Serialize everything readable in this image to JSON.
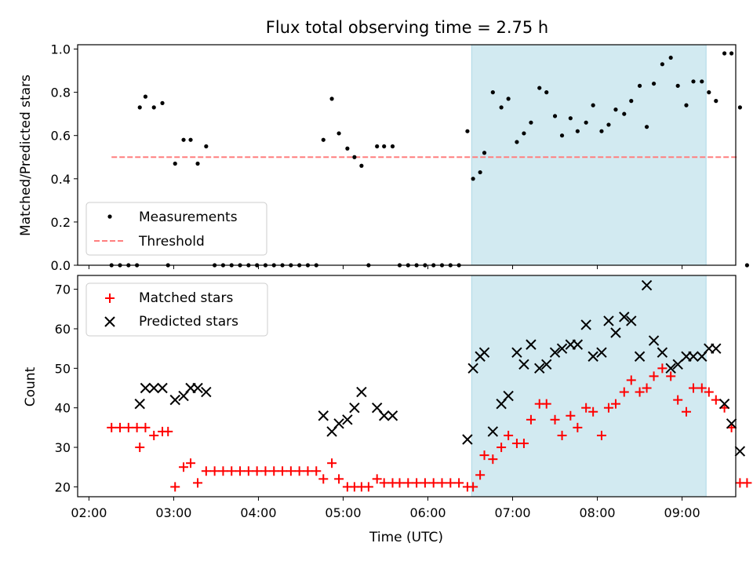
{
  "figure": {
    "title": "Flux total observing time = 2.75 h",
    "xlabel": "Time (UTC)",
    "x_ticks": [
      "02:00",
      "03:00",
      "04:00",
      "05:00",
      "06:00",
      "07:00",
      "08:00",
      "09:00"
    ],
    "shaded_interval": {
      "start": "06:31",
      "end": "09:17",
      "color": "#add8e6"
    }
  },
  "chart_data": [
    {
      "type": "scatter",
      "name": "top-panel",
      "ylabel": "Matched/Predicted stars",
      "xlim": [
        "01:52",
        "09:38"
      ],
      "ylim": [
        0,
        1.02
      ],
      "y_ticks": [
        "0.0",
        "0.2",
        "0.4",
        "0.6",
        "0.8",
        "1.0"
      ],
      "legend": {
        "location": "lower-left",
        "entries": [
          "Measurements",
          "Threshold"
        ]
      },
      "series": [
        {
          "name": "Measurements",
          "marker": "dot",
          "color": "#000000",
          "points": [
            [
              "02:16",
              0
            ],
            [
              "02:22",
              0
            ],
            [
              "02:28",
              0
            ],
            [
              "02:34",
              0
            ],
            [
              "02:36",
              0.73
            ],
            [
              "02:40",
              0.78
            ],
            [
              "02:46",
              0.73
            ],
            [
              "02:52",
              0.75
            ],
            [
              "02:56",
              0
            ],
            [
              "03:01",
              0.47
            ],
            [
              "03:07",
              0.58
            ],
            [
              "03:12",
              0.58
            ],
            [
              "03:17",
              0.47
            ],
            [
              "03:23",
              0.55
            ],
            [
              "03:29",
              0
            ],
            [
              "03:35",
              0
            ],
            [
              "03:41",
              0
            ],
            [
              "03:47",
              0
            ],
            [
              "03:53",
              0
            ],
            [
              "03:59",
              0
            ],
            [
              "04:05",
              0
            ],
            [
              "04:11",
              0
            ],
            [
              "04:17",
              0
            ],
            [
              "04:23",
              0
            ],
            [
              "04:29",
              0
            ],
            [
              "04:35",
              0
            ],
            [
              "04:41",
              0
            ],
            [
              "04:46",
              0.58
            ],
            [
              "04:52",
              0.77
            ],
            [
              "04:57",
              0.61
            ],
            [
              "05:03",
              0.54
            ],
            [
              "05:08",
              0.5
            ],
            [
              "05:13",
              0.46
            ],
            [
              "05:18",
              0
            ],
            [
              "05:24",
              0.55
            ],
            [
              "05:29",
              0.55
            ],
            [
              "05:35",
              0.55
            ],
            [
              "05:40",
              0
            ],
            [
              "05:46",
              0
            ],
            [
              "05:52",
              0
            ],
            [
              "05:58",
              0
            ],
            [
              "06:04",
              0
            ],
            [
              "06:10",
              0
            ],
            [
              "06:16",
              0
            ],
            [
              "06:22",
              0
            ],
            [
              "06:28",
              0.62
            ],
            [
              "06:32",
              0.4
            ],
            [
              "06:37",
              0.43
            ],
            [
              "06:40",
              0.52
            ],
            [
              "06:46",
              0.8
            ],
            [
              "06:52",
              0.73
            ],
            [
              "06:57",
              0.77
            ],
            [
              "07:03",
              0.57
            ],
            [
              "07:08",
              0.61
            ],
            [
              "07:13",
              0.66
            ],
            [
              "07:19",
              0.82
            ],
            [
              "07:24",
              0.8
            ],
            [
              "07:30",
              0.69
            ],
            [
              "07:35",
              0.6
            ],
            [
              "07:41",
              0.68
            ],
            [
              "07:46",
              0.62
            ],
            [
              "07:52",
              0.66
            ],
            [
              "07:57",
              0.74
            ],
            [
              "08:03",
              0.62
            ],
            [
              "08:08",
              0.65
            ],
            [
              "08:13",
              0.72
            ],
            [
              "08:19",
              0.7
            ],
            [
              "08:24",
              0.76
            ],
            [
              "08:30",
              0.83
            ],
            [
              "08:35",
              0.64
            ],
            [
              "08:40",
              0.84
            ],
            [
              "08:46",
              0.93
            ],
            [
              "08:52",
              0.96
            ],
            [
              "08:57",
              0.83
            ],
            [
              "09:03",
              0.74
            ],
            [
              "09:08",
              0.85
            ],
            [
              "09:14",
              0.85
            ],
            [
              "09:19",
              0.8
            ],
            [
              "09:24",
              0.76
            ],
            [
              "09:30",
              0.98
            ],
            [
              "09:35",
              0.98
            ],
            [
              "09:41",
              0.73
            ],
            [
              "09:46",
              0
            ]
          ]
        },
        {
          "name": "Threshold",
          "style": "dashed",
          "color": "#ff7f7f",
          "y": 0.5,
          "x_range": [
            "02:16",
            "09:40"
          ]
        }
      ]
    },
    {
      "type": "scatter",
      "name": "bottom-panel",
      "ylabel": "Count",
      "xlim": [
        "01:52",
        "09:38"
      ],
      "ylim": [
        17.5,
        73.5
      ],
      "y_ticks": [
        "20",
        "30",
        "40",
        "50",
        "60",
        "70"
      ],
      "legend": {
        "location": "upper-left",
        "entries": [
          "Matched stars",
          "Predicted stars"
        ]
      },
      "series": [
        {
          "name": "Matched stars",
          "marker": "plus",
          "color": "#ff0000",
          "points": [
            [
              "02:16",
              35
            ],
            [
              "02:22",
              35
            ],
            [
              "02:28",
              35
            ],
            [
              "02:34",
              35
            ],
            [
              "02:36",
              30
            ],
            [
              "02:40",
              35
            ],
            [
              "02:46",
              33
            ],
            [
              "02:52",
              34
            ],
            [
              "02:56",
              34
            ],
            [
              "03:01",
              20
            ],
            [
              "03:07",
              25
            ],
            [
              "03:12",
              26
            ],
            [
              "03:17",
              21
            ],
            [
              "03:23",
              24
            ],
            [
              "03:29",
              24
            ],
            [
              "03:35",
              24
            ],
            [
              "03:41",
              24
            ],
            [
              "03:47",
              24
            ],
            [
              "03:53",
              24
            ],
            [
              "03:59",
              24
            ],
            [
              "04:05",
              24
            ],
            [
              "04:11",
              24
            ],
            [
              "04:17",
              24
            ],
            [
              "04:23",
              24
            ],
            [
              "04:29",
              24
            ],
            [
              "04:35",
              24
            ],
            [
              "04:41",
              24
            ],
            [
              "04:46",
              22
            ],
            [
              "04:52",
              26
            ],
            [
              "04:57",
              22
            ],
            [
              "05:03",
              20
            ],
            [
              "05:08",
              20
            ],
            [
              "05:13",
              20
            ],
            [
              "05:18",
              20
            ],
            [
              "05:24",
              22
            ],
            [
              "05:29",
              21
            ],
            [
              "05:35",
              21
            ],
            [
              "05:40",
              21
            ],
            [
              "05:46",
              21
            ],
            [
              "05:52",
              21
            ],
            [
              "05:58",
              21
            ],
            [
              "06:04",
              21
            ],
            [
              "06:10",
              21
            ],
            [
              "06:16",
              21
            ],
            [
              "06:22",
              21
            ],
            [
              "06:28",
              20
            ],
            [
              "06:32",
              20
            ],
            [
              "06:37",
              23
            ],
            [
              "06:40",
              28
            ],
            [
              "06:46",
              27
            ],
            [
              "06:52",
              30
            ],
            [
              "06:57",
              33
            ],
            [
              "07:03",
              31
            ],
            [
              "07:08",
              31
            ],
            [
              "07:13",
              37
            ],
            [
              "07:19",
              41
            ],
            [
              "07:24",
              41
            ],
            [
              "07:30",
              37
            ],
            [
              "07:35",
              33
            ],
            [
              "07:41",
              38
            ],
            [
              "07:46",
              35
            ],
            [
              "07:52",
              40
            ],
            [
              "07:57",
              39
            ],
            [
              "08:03",
              33
            ],
            [
              "08:08",
              40
            ],
            [
              "08:13",
              41
            ],
            [
              "08:19",
              44
            ],
            [
              "08:24",
              47
            ],
            [
              "08:30",
              44
            ],
            [
              "08:35",
              45
            ],
            [
              "08:40",
              48
            ],
            [
              "08:46",
              50
            ],
            [
              "08:52",
              48
            ],
            [
              "08:57",
              42
            ],
            [
              "09:03",
              39
            ],
            [
              "09:08",
              45
            ],
            [
              "09:14",
              45
            ],
            [
              "09:19",
              44
            ],
            [
              "09:24",
              42
            ],
            [
              "09:30",
              40
            ],
            [
              "09:35",
              35
            ],
            [
              "09:41",
              21
            ],
            [
              "09:46",
              21
            ]
          ]
        },
        {
          "name": "Predicted stars",
          "marker": "x",
          "color": "#000000",
          "points": [
            [
              "02:36",
              41
            ],
            [
              "02:40",
              45
            ],
            [
              "02:46",
              45
            ],
            [
              "02:52",
              45
            ],
            [
              "03:01",
              42
            ],
            [
              "03:07",
              43
            ],
            [
              "03:12",
              45
            ],
            [
              "03:17",
              45
            ],
            [
              "03:23",
              44
            ],
            [
              "04:46",
              38
            ],
            [
              "04:52",
              34
            ],
            [
              "04:57",
              36
            ],
            [
              "05:03",
              37
            ],
            [
              "05:08",
              40
            ],
            [
              "05:13",
              44
            ],
            [
              "05:24",
              40
            ],
            [
              "05:29",
              38
            ],
            [
              "05:35",
              38
            ],
            [
              "06:28",
              32
            ],
            [
              "06:32",
              50
            ],
            [
              "06:37",
              53
            ],
            [
              "06:40",
              54
            ],
            [
              "06:46",
              34
            ],
            [
              "06:52",
              41
            ],
            [
              "06:57",
              43
            ],
            [
              "07:03",
              54
            ],
            [
              "07:08",
              51
            ],
            [
              "07:13",
              56
            ],
            [
              "07:19",
              50
            ],
            [
              "07:24",
              51
            ],
            [
              "07:30",
              54
            ],
            [
              "07:35",
              55
            ],
            [
              "07:41",
              56
            ],
            [
              "07:46",
              56
            ],
            [
              "07:52",
              61
            ],
            [
              "07:57",
              53
            ],
            [
              "08:03",
              54
            ],
            [
              "08:08",
              62
            ],
            [
              "08:13",
              59
            ],
            [
              "08:19",
              63
            ],
            [
              "08:24",
              62
            ],
            [
              "08:30",
              53
            ],
            [
              "08:35",
              71
            ],
            [
              "08:40",
              57
            ],
            [
              "08:46",
              54
            ],
            [
              "08:52",
              50
            ],
            [
              "08:57",
              51
            ],
            [
              "09:03",
              53
            ],
            [
              "09:08",
              53
            ],
            [
              "09:14",
              53
            ],
            [
              "09:19",
              55
            ],
            [
              "09:24",
              55
            ],
            [
              "09:30",
              41
            ],
            [
              "09:35",
              36
            ],
            [
              "09:41",
              29
            ]
          ]
        }
      ]
    }
  ]
}
